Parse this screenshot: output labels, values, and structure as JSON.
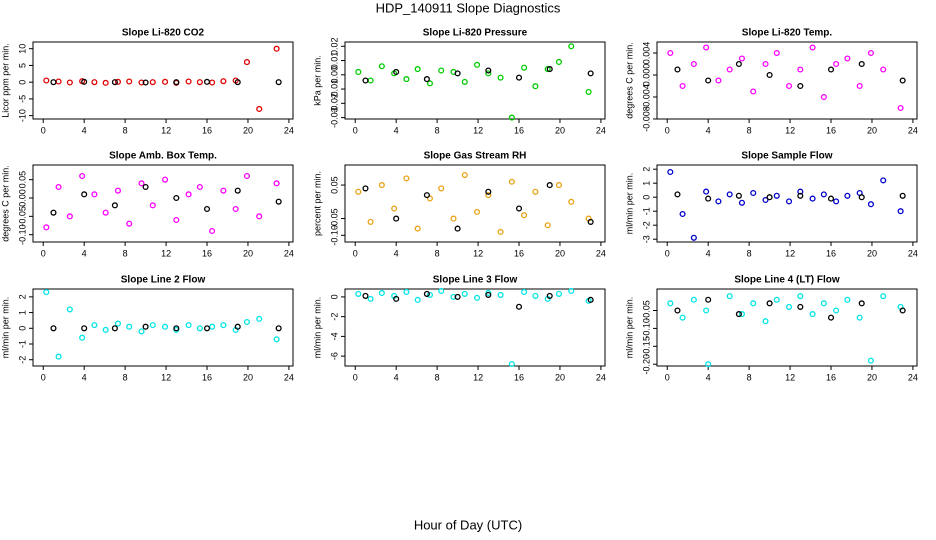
{
  "title": "HDP_140911  Slope Diagnostics",
  "xlabel": "Hour of Day (UTC)",
  "chart_data": [
    {
      "type": "scatter",
      "title": "Slope Li-820 CO2",
      "ylabel": "Licor ppm per min.",
      "xlim": [
        -1,
        24.4
      ],
      "xticks": [
        0,
        4,
        8,
        12,
        16,
        20,
        24
      ],
      "ylim": [
        -11,
        12
      ],
      "yticks": [
        -10,
        -5,
        0,
        5,
        10
      ],
      "series": [
        {
          "color": "#e00000",
          "x": [
            0.3,
            1.5,
            2.6,
            3.8,
            5.0,
            6.1,
            7.3,
            8.4,
            9.6,
            10.7,
            11.9,
            13.0,
            14.2,
            15.3,
            16.5,
            17.6,
            18.8,
            19.9,
            21.1,
            22.8
          ],
          "values": [
            0.5,
            0.2,
            -0.1,
            0.3,
            0,
            -0.2,
            0.1,
            0.2,
            -0.1,
            0,
            0.1,
            -0.2,
            0.2,
            0,
            -0.1,
            0.3,
            0.5,
            6,
            -8,
            10
          ]
        },
        {
          "color": "#000000",
          "x": [
            1,
            4,
            7,
            10,
            13,
            16,
            19,
            23
          ],
          "values": [
            0,
            0.1,
            0,
            -0.1,
            0,
            0.1,
            0,
            0
          ]
        }
      ]
    },
    {
      "type": "scatter",
      "title": "Slope Li-820 Pressure",
      "ylabel": "kPa per min.",
      "xlim": [
        -1,
        24.4
      ],
      "xticks": [
        0,
        4,
        8,
        12,
        16,
        20,
        24
      ],
      "ylim": [
        -0.031,
        0.023
      ],
      "yticks": [
        -0.03,
        -0.02,
        -0.01,
        {
          "value": 0,
          "label": "0.00"
        },
        0.01,
        0.02
      ],
      "series": [
        {
          "color": "#00cc00",
          "x": [
            0.3,
            1.5,
            2.6,
            3.8,
            5.0,
            6.1,
            7.3,
            8.4,
            9.6,
            10.7,
            11.9,
            13.0,
            14.2,
            15.3,
            16.5,
            17.6,
            18.8,
            19.9,
            21.1,
            22.8
          ],
          "values": [
            0.002,
            -0.004,
            0.006,
            0.001,
            -0.003,
            0.004,
            -0.006,
            0.003,
            0.002,
            -0.005,
            0.007,
            0.001,
            -0.002,
            -0.03,
            0.005,
            -0.008,
            0.004,
            0.009,
            0.02,
            -0.012
          ]
        },
        {
          "color": "#000000",
          "x": [
            1,
            4,
            7,
            10,
            13,
            16,
            19,
            23
          ],
          "values": [
            -0.004,
            0.002,
            -0.003,
            0.001,
            0.003,
            -0.002,
            0.004,
            0.001
          ]
        }
      ]
    },
    {
      "type": "scatter",
      "title": "Slope Li-820 Temp.",
      "ylabel": "degrees C per min.",
      "xlim": [
        -1,
        24.4
      ],
      "xticks": [
        0,
        4,
        8,
        12,
        16,
        20,
        24
      ],
      "ylim": [
        -0.008,
        0.006
      ],
      "yticks": [
        -0.008,
        -0.004,
        {
          "value": 0,
          "label": "0.000"
        },
        0.004
      ],
      "series": [
        {
          "color": "#ff00ff",
          "x": [
            0.3,
            1.5,
            2.6,
            3.8,
            5.0,
            6.1,
            7.3,
            8.4,
            9.6,
            10.7,
            11.9,
            13.0,
            14.2,
            15.3,
            16.5,
            17.6,
            18.8,
            19.9,
            21.1,
            22.8
          ],
          "values": [
            0.004,
            -0.002,
            0.002,
            0.005,
            -0.001,
            0.001,
            0.003,
            -0.003,
            0.002,
            0.004,
            -0.002,
            0.001,
            0.005,
            -0.004,
            0.002,
            0.003,
            -0.002,
            0.004,
            0.001,
            -0.006
          ]
        },
        {
          "color": "#000000",
          "x": [
            1,
            4,
            7,
            10,
            13,
            16,
            19,
            23
          ],
          "values": [
            0.001,
            -0.001,
            0.002,
            0,
            -0.002,
            0.001,
            0.002,
            -0.001
          ]
        }
      ]
    },
    {
      "type": "scatter",
      "title": "Slope Amb. Box Temp.",
      "ylabel": "degrees C per min.",
      "xlim": [
        -1,
        24.4
      ],
      "xticks": [
        0,
        4,
        8,
        12,
        16,
        20,
        24
      ],
      "ylim": [
        -0.12,
        0.09
      ],
      "yticks": [
        {
          "value": -0.1,
          "label": "-0.10"
        },
        -0.05,
        {
          "value": 0,
          "label": "0.00"
        },
        0.05
      ],
      "series": [
        {
          "color": "#ff00ff",
          "x": [
            0.3,
            1.5,
            2.6,
            3.8,
            5.0,
            6.1,
            7.3,
            8.4,
            9.6,
            10.7,
            11.9,
            13.0,
            14.2,
            15.3,
            16.5,
            17.6,
            18.8,
            19.9,
            21.1,
            22.8
          ],
          "values": [
            -0.08,
            0.03,
            -0.05,
            0.06,
            0.01,
            -0.04,
            0.02,
            -0.07,
            0.04,
            -0.02,
            0.05,
            -0.06,
            0.01,
            0.03,
            -0.09,
            0.02,
            -0.03,
            0.06,
            -0.05,
            0.04
          ]
        },
        {
          "color": "#000000",
          "x": [
            1,
            4,
            7,
            10,
            13,
            16,
            19,
            23
          ],
          "values": [
            -0.04,
            0.01,
            -0.02,
            0.03,
            0,
            -0.03,
            0.02,
            -0.01
          ]
        }
      ]
    },
    {
      "type": "scatter",
      "title": "Slope Gas Stream RH",
      "ylabel": "percent per min.",
      "xlim": [
        -1,
        24.4
      ],
      "xticks": [
        0,
        4,
        8,
        12,
        16,
        20,
        24
      ],
      "ylim": [
        -0.12,
        0.11
      ],
      "yticks": [
        {
          "value": -0.1,
          "label": "-0.10"
        },
        -0.05,
        0.05
      ],
      "series": [
        {
          "color": "#e8a317",
          "x": [
            0.3,
            1.5,
            2.6,
            3.8,
            5.0,
            6.1,
            7.3,
            8.4,
            9.6,
            10.7,
            11.9,
            13.0,
            14.2,
            15.3,
            16.5,
            17.6,
            18.8,
            19.9,
            21.1,
            22.8
          ],
          "values": [
            0.03,
            -0.06,
            0.05,
            -0.02,
            0.07,
            -0.08,
            0.01,
            0.04,
            -0.05,
            0.08,
            -0.03,
            0.02,
            -0.09,
            0.06,
            -0.04,
            0.03,
            -0.07,
            0.05,
            0,
            -0.05
          ]
        },
        {
          "color": "#000000",
          "x": [
            1,
            4,
            7,
            10,
            13,
            16,
            19,
            23
          ],
          "values": [
            0.04,
            -0.05,
            0.02,
            -0.08,
            0.03,
            -0.02,
            0.05,
            -0.06
          ]
        }
      ]
    },
    {
      "type": "scatter",
      "title": "Slope Sample Flow",
      "ylabel": "ml/min per min.",
      "xlim": [
        -1,
        24.4
      ],
      "xticks": [
        0,
        4,
        8,
        12,
        16,
        20,
        24
      ],
      "ylim": [
        -3.2,
        2.3
      ],
      "yticks": [
        -3,
        -2,
        -1,
        0,
        1,
        2
      ],
      "series": [
        {
          "color": "#0000cc",
          "x": [
            0.3,
            1.5,
            2.6,
            3.8,
            5.0,
            6.1,
            7.3,
            8.4,
            9.6,
            10.7,
            11.9,
            13.0,
            14.2,
            15.3,
            16.5,
            17.6,
            18.8,
            19.9,
            21.1,
            22.8
          ],
          "values": [
            1.8,
            -1.2,
            -2.9,
            0.4,
            -0.3,
            0.2,
            -0.4,
            0.3,
            -0.2,
            0.1,
            -0.3,
            0.4,
            -0.1,
            0.2,
            -0.3,
            0.1,
            0.3,
            -0.5,
            1.2,
            -1.0
          ]
        },
        {
          "color": "#000000",
          "x": [
            1,
            4,
            7,
            10,
            13,
            16,
            19,
            23
          ],
          "values": [
            0.2,
            -0.1,
            0.1,
            0,
            0.1,
            -0.1,
            0,
            0.1
          ]
        }
      ]
    },
    {
      "type": "scatter",
      "title": "Slope Line 2 Flow",
      "ylabel": "ml/min per min.",
      "xlim": [
        -1,
        24.4
      ],
      "xticks": [
        0,
        4,
        8,
        12,
        16,
        20,
        24
      ],
      "ylim": [
        -2.4,
        2.5
      ],
      "yticks": [
        -2,
        -1,
        0,
        1,
        2
      ],
      "series": [
        {
          "color": "#00e5e5",
          "x": [
            0.3,
            1.5,
            2.6,
            3.8,
            5.0,
            6.1,
            7.3,
            8.4,
            9.6,
            10.7,
            11.9,
            13.0,
            14.2,
            15.3,
            16.5,
            17.6,
            18.8,
            19.9,
            21.1,
            22.8
          ],
          "values": [
            2.3,
            -1.8,
            1.2,
            -0.6,
            0.2,
            -0.1,
            0.3,
            0.1,
            -0.2,
            0.2,
            0.1,
            -0.1,
            0.2,
            0,
            0.1,
            0.2,
            -0.1,
            0.4,
            0.6,
            -0.7
          ]
        },
        {
          "color": "#000000",
          "x": [
            1,
            4,
            7,
            10,
            13,
            16,
            19,
            23
          ],
          "values": [
            0,
            0,
            0,
            0.1,
            0,
            0,
            0.1,
            0
          ]
        }
      ]
    },
    {
      "type": "scatter",
      "title": "Slope Line 3 Flow",
      "ylabel": "ml/min per min.",
      "xlim": [
        -1,
        24.4
      ],
      "xticks": [
        0,
        4,
        8,
        12,
        16,
        20,
        24
      ],
      "ylim": [
        -7,
        0.8
      ],
      "yticks": [
        -6,
        -4,
        -2,
        0
      ],
      "series": [
        {
          "color": "#00e5e5",
          "x": [
            0.3,
            1.5,
            2.6,
            3.8,
            5.0,
            6.1,
            7.3,
            8.4,
            9.6,
            10.7,
            11.9,
            13.0,
            14.2,
            15.3,
            16.5,
            17.6,
            18.8,
            19.9,
            21.1,
            22.8
          ],
          "values": [
            0.3,
            -0.2,
            0.4,
            0.1,
            0.5,
            -0.3,
            0.2,
            0.6,
            0,
            0.3,
            -0.1,
            0.4,
            0.2,
            -6.8,
            0.5,
            0.1,
            -0.2,
            0.3,
            0.6,
            -0.4
          ]
        },
        {
          "color": "#000000",
          "x": [
            1,
            4,
            7,
            10,
            13,
            16,
            19,
            23
          ],
          "values": [
            0.1,
            -0.2,
            0.3,
            0,
            0.2,
            -1.0,
            0.1,
            -0.3
          ]
        }
      ]
    },
    {
      "type": "scatter",
      "title": "Slope Line 4 (LT) Flow",
      "ylabel": "ml/min per min.",
      "xlim": [
        -1,
        24.4
      ],
      "xticks": [
        0,
        4,
        8,
        12,
        16,
        20,
        24
      ],
      "ylim": [
        -0.205,
        0.01
      ],
      "yticks": [
        {
          "value": -0.2,
          "label": "-0.20"
        },
        -0.15,
        {
          "value": -0.1,
          "label": "-0.10"
        },
        -0.05
      ],
      "series": [
        {
          "color": "#00e5e5",
          "x": [
            0.3,
            1.5,
            2.6,
            3.8,
            4.0,
            6.1,
            7.3,
            8.4,
            9.6,
            10.7,
            11.9,
            13.0,
            14.2,
            15.3,
            16.5,
            17.6,
            18.8,
            19.9,
            21.1,
            22.8
          ],
          "values": [
            -0.03,
            -0.07,
            -0.02,
            -0.05,
            -0.2,
            -0.01,
            -0.06,
            -0.03,
            -0.08,
            -0.02,
            -0.04,
            -0.01,
            -0.06,
            -0.03,
            -0.05,
            -0.02,
            -0.07,
            -0.19,
            -0.01,
            -0.04
          ]
        },
        {
          "color": "#000000",
          "x": [
            1,
            4,
            7,
            10,
            13,
            16,
            19,
            23
          ],
          "values": [
            -0.05,
            -0.02,
            -0.06,
            -0.03,
            -0.04,
            -0.07,
            -0.03,
            -0.05
          ]
        }
      ]
    }
  ]
}
